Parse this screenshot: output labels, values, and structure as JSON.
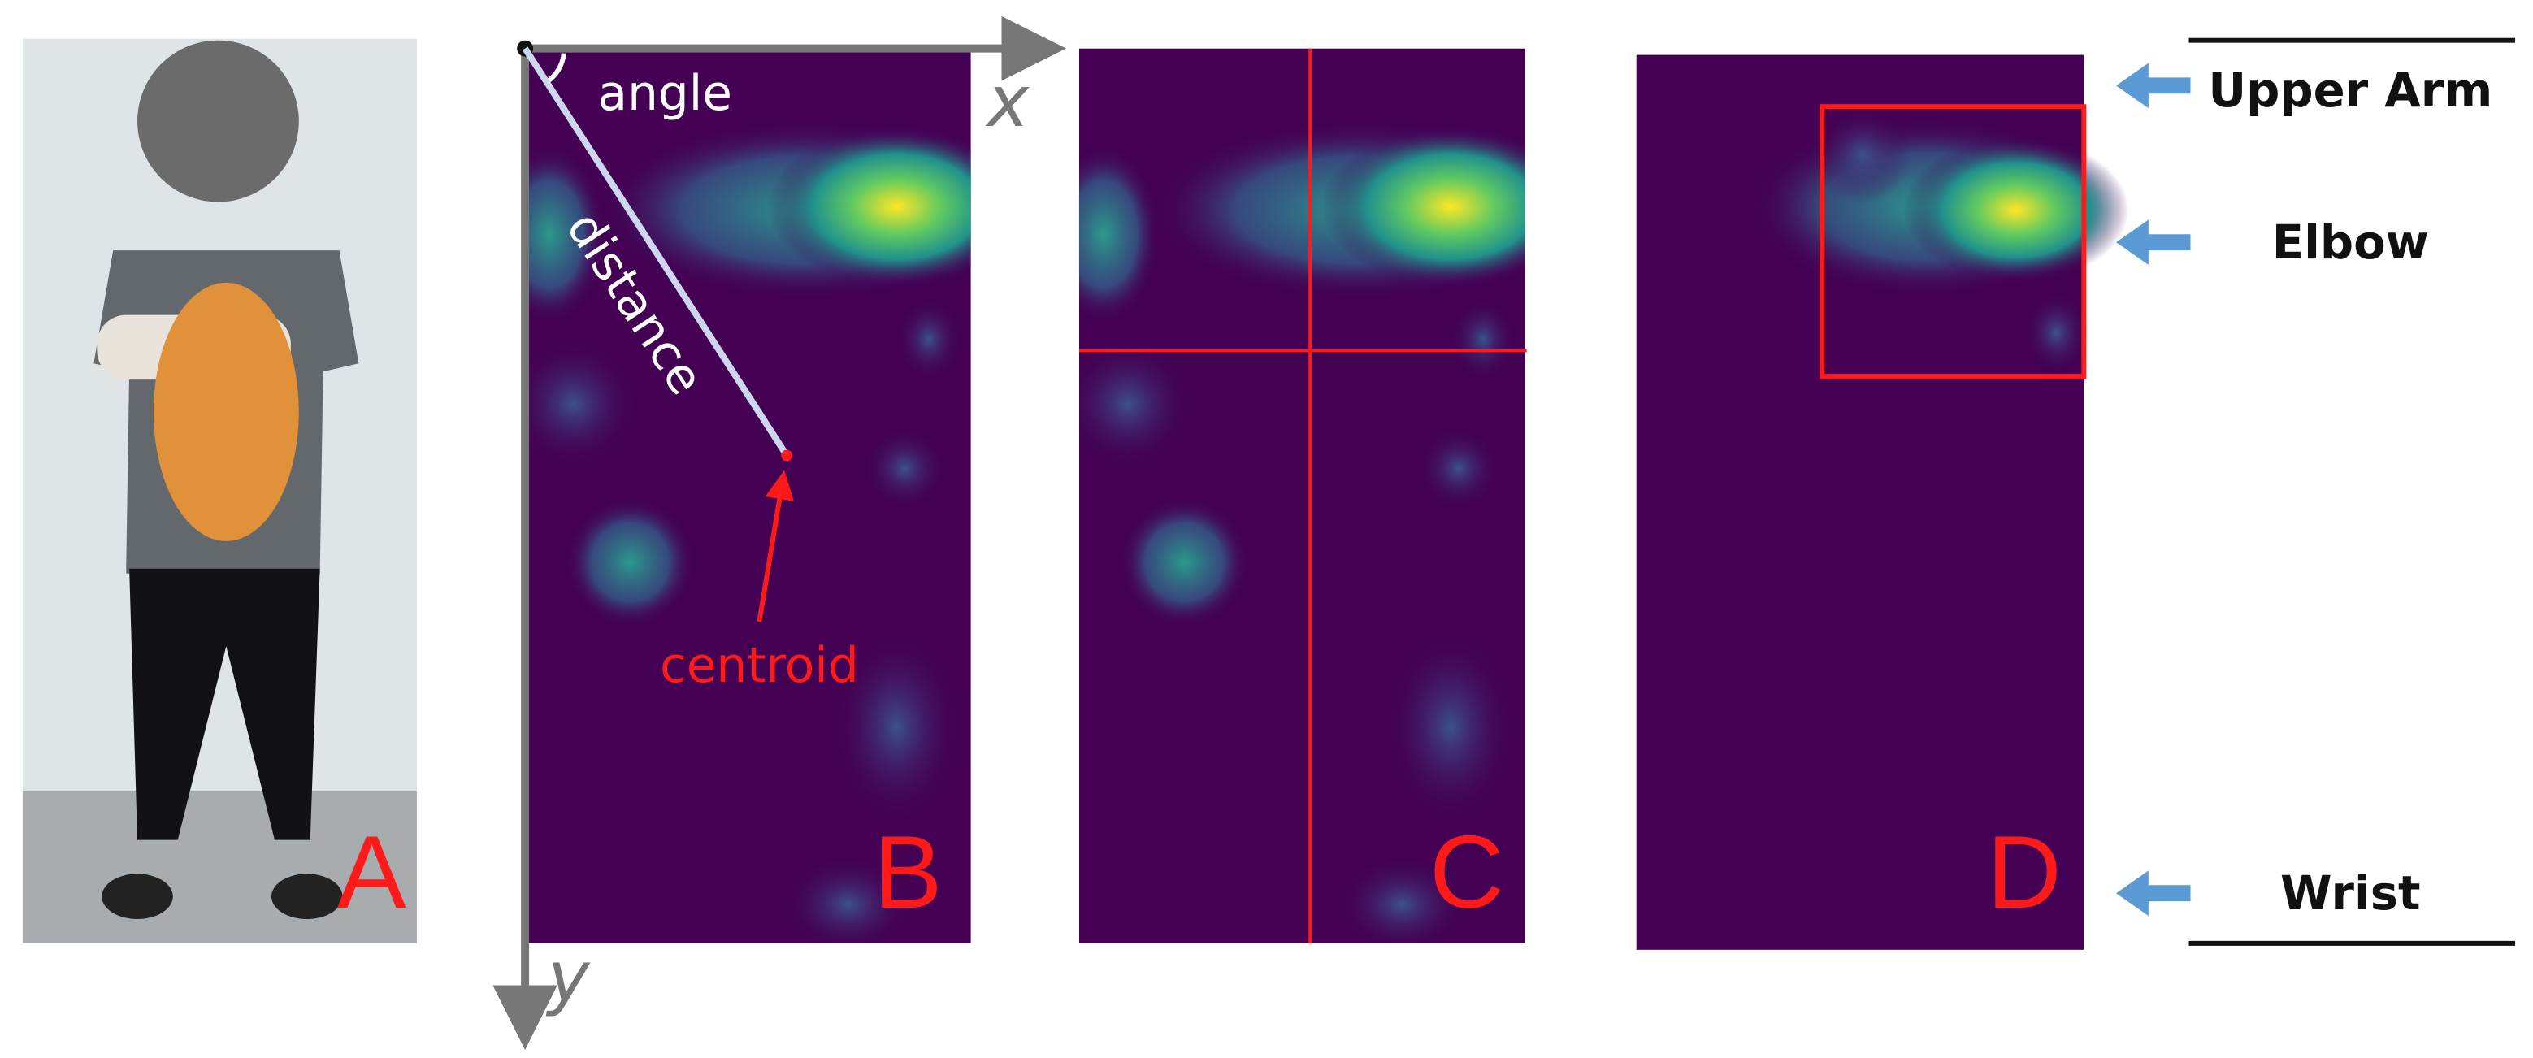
{
  "panel_a": {
    "label": "A"
  },
  "panel_b": {
    "label": "B",
    "x_axis": "x",
    "y_axis": "y",
    "angle": "angle",
    "distance": "distance",
    "centroid": "centroid"
  },
  "panel_c": {
    "label": "C"
  },
  "panel_d": {
    "label": "D",
    "markers": [
      "Upper Arm",
      "Elbow",
      "Wrist"
    ]
  }
}
